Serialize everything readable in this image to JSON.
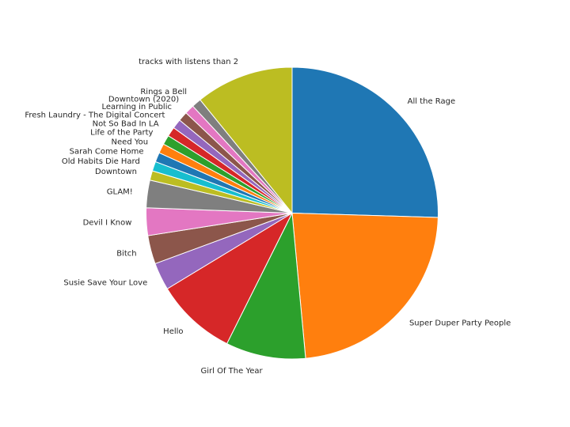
{
  "chart_data": {
    "type": "pie",
    "start_angle_deg": 90,
    "direction": "clockwise",
    "slices": [
      {
        "label": "All the Rage",
        "value": 24.2,
        "color": "#1f77b4"
      },
      {
        "label": "Super Duper Party People",
        "value": 21.9,
        "color": "#ff7f0e"
      },
      {
        "label": "Girl Of The Year",
        "value": 8.4,
        "color": "#2ca02c"
      },
      {
        "label": "Hello",
        "value": 8.5,
        "color": "#d62728"
      },
      {
        "label": "Susie Save Your Love",
        "value": 2.9,
        "color": "#9467bd"
      },
      {
        "label": "Bitch",
        "value": 3.0,
        "color": "#8c564b"
      },
      {
        "label": "Devil I Know",
        "value": 2.9,
        "color": "#e377c2"
      },
      {
        "label": "GLAM!",
        "value": 2.9,
        "color": "#7f7f7f"
      },
      {
        "label": "Downtown",
        "value": 1.0,
        "color": "#bcbd22"
      },
      {
        "label": "Old Habits Die Hard",
        "value": 1.0,
        "color": "#17becf"
      },
      {
        "label": "Sarah Come Home",
        "value": 1.0,
        "color": "#1f77b4"
      },
      {
        "label": "Need You",
        "value": 1.0,
        "color": "#ff7f0e"
      },
      {
        "label": "Life of the Party",
        "value": 1.0,
        "color": "#2ca02c"
      },
      {
        "label": "Not So Bad In LA",
        "value": 1.0,
        "color": "#d62728"
      },
      {
        "label": "Fresh Laundry - The Digital Concert",
        "value": 1.0,
        "color": "#9467bd"
      },
      {
        "label": "Learning in Public",
        "value": 1.0,
        "color": "#8c564b"
      },
      {
        "label": "Downtown (2020)",
        "value": 1.0,
        "color": "#e377c2"
      },
      {
        "label": "Rings a Bell",
        "value": 1.0,
        "color": "#7f7f7f"
      },
      {
        "label": "tracks with listens than 2",
        "value": 10.3,
        "color": "#bcbd22"
      }
    ]
  }
}
